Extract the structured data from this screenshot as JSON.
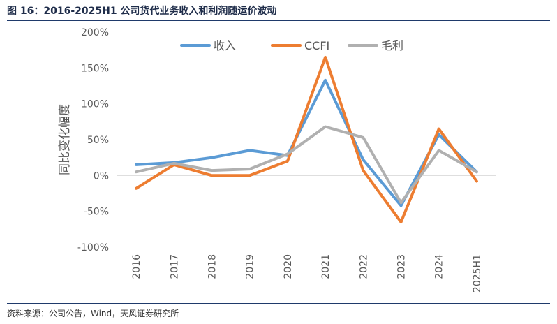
{
  "figure": {
    "title": "图 16：2016-2025H1 公司货代业务收入和利润随运价波动",
    "source": "资料来源：公司公告，Wind，天风证券研究所"
  },
  "colors": {
    "revenue": "#5b9bd5",
    "ccfi": "#ed7d31",
    "gross_profit": "#b0b0b0",
    "title": "#1f2d4a",
    "rule": "#1f3a6b",
    "axis_text": "#595959",
    "axis_line": "#d9d9d9"
  },
  "chart_data": {
    "type": "line",
    "title": "",
    "xlabel": "",
    "ylabel": "同比变化幅度",
    "ylim": [
      -100,
      200
    ],
    "yticks": [
      -100,
      -50,
      0,
      50,
      100,
      150,
      200
    ],
    "ytick_labels": [
      "-100%",
      "-50%",
      "0%",
      "50%",
      "100%",
      "150%",
      "200%"
    ],
    "grid": false,
    "legend_position": "top",
    "categories": [
      "2016",
      "2017",
      "2018",
      "2019",
      "2020",
      "2021",
      "2022",
      "2023",
      "2024",
      "2025H1"
    ],
    "series": [
      {
        "name": "收入",
        "color_key": "revenue",
        "values": [
          15,
          18,
          25,
          35,
          28,
          133,
          22,
          -42,
          57,
          5
        ]
      },
      {
        "name": "CCFI",
        "color_key": "ccfi",
        "values": [
          -18,
          15,
          0,
          0,
          20,
          165,
          7,
          -65,
          65,
          -8
        ]
      },
      {
        "name": "毛利",
        "color_key": "gross_profit",
        "values": [
          5,
          17,
          7,
          9,
          30,
          68,
          53,
          -38,
          35,
          5
        ]
      }
    ]
  }
}
